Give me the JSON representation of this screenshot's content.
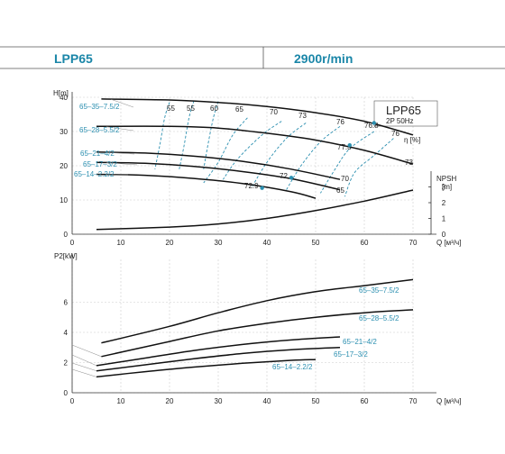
{
  "header": {
    "model": "LPP65",
    "speed": "2900r/min"
  },
  "chart_data": [
    {
      "type": "line",
      "id": "head",
      "title": "LPP65",
      "subtitle": "2P  50Hz",
      "ylabel": "H[m]",
      "xlabel": "Q [м³/ч]",
      "xlim": [
        0,
        70
      ],
      "ylim": [
        0,
        40
      ],
      "xticks": [
        0,
        10,
        20,
        30,
        40,
        50,
        60,
        70
      ],
      "yticks": [
        0,
        10,
        20,
        30,
        40
      ],
      "grid": true,
      "eta_label": "η [%]",
      "series": [
        {
          "name": "65–35–7.5/2",
          "x": [
            6,
            20,
            30,
            40,
            50,
            60,
            70
          ],
          "y": [
            39.5,
            39.2,
            38.5,
            37.3,
            35.5,
            33,
            29
          ]
        },
        {
          "name": "65–28–5.5/2",
          "x": [
            5,
            20,
            30,
            40,
            50,
            60,
            70
          ],
          "y": [
            31.5,
            31.5,
            31,
            29.5,
            27.5,
            24.5,
            20.5
          ]
        },
        {
          "name": "65–21–4/2",
          "x": [
            5,
            15,
            25,
            35,
            45,
            55
          ],
          "y": [
            24,
            23.7,
            22.8,
            21.3,
            19,
            16
          ]
        },
        {
          "name": "65–17–3/2",
          "x": [
            5,
            15,
            25,
            35,
            45,
            55
          ],
          "y": [
            21,
            20.7,
            19.8,
            18.3,
            16.2,
            13
          ]
        },
        {
          "name": "65–14–2.2/2",
          "x": [
            5,
            15,
            25,
            35,
            45,
            50
          ],
          "y": [
            17.5,
            17.2,
            16.3,
            14.8,
            12.4,
            10.5
          ]
        }
      ],
      "efficiency_labels": [
        "55",
        "55",
        "60",
        "65",
        "70",
        "73",
        "76",
        "76.8",
        "76",
        "77.3",
        "73",
        "72",
        "70",
        "72.9",
        "65"
      ],
      "efficiency_points": [
        {
          "label": "76.8",
          "x": 62,
          "y": 32.5
        },
        {
          "label": "77.3",
          "x": 57,
          "y": 26
        },
        {
          "label": "72",
          "x": 45,
          "y": 16.5
        },
        {
          "label": "72.9",
          "x": 39,
          "y": 13.5
        }
      ]
    },
    {
      "type": "line",
      "id": "npsh",
      "ylabel": "NPSH [m]",
      "ylim": [
        0,
        4
      ],
      "yticks": [
        0,
        1,
        2,
        3
      ],
      "series": [
        {
          "name": "NPSH",
          "x": [
            5,
            20,
            30,
            40,
            50,
            60,
            70
          ],
          "y": [
            0.3,
            0.45,
            0.65,
            1.0,
            1.5,
            2.1,
            2.8
          ]
        }
      ]
    },
    {
      "type": "line",
      "id": "power",
      "ylabel": "P2[kW]",
      "xlabel": "Q [м³/ч]",
      "xlim": [
        0,
        70
      ],
      "ylim": [
        0,
        8
      ],
      "xticks": [
        0,
        10,
        20,
        30,
        40,
        50,
        60,
        70
      ],
      "yticks": [
        0,
        2,
        4,
        6
      ],
      "grid": true,
      "series": [
        {
          "name": "65–35–7.5/2",
          "x": [
            6,
            20,
            30,
            40,
            50,
            60,
            70
          ],
          "y": [
            3.3,
            4.4,
            5.3,
            6.1,
            6.7,
            7.1,
            7.5
          ]
        },
        {
          "name": "65–28–5.5/2",
          "x": [
            6,
            20,
            30,
            40,
            50,
            60,
            70
          ],
          "y": [
            2.4,
            3.4,
            4.1,
            4.6,
            5.0,
            5.3,
            5.5
          ]
        },
        {
          "name": "65–21–4/2",
          "x": [
            5,
            15,
            25,
            35,
            45,
            55
          ],
          "y": [
            1.8,
            2.3,
            2.8,
            3.2,
            3.5,
            3.7
          ]
        },
        {
          "name": "65–17–3/2",
          "x": [
            5,
            15,
            25,
            35,
            45,
            55
          ],
          "y": [
            1.45,
            1.85,
            2.25,
            2.6,
            2.85,
            3.0
          ]
        },
        {
          "name": "65–14–2.2/2",
          "x": [
            5,
            15,
            25,
            35,
            45,
            50
          ],
          "y": [
            1.05,
            1.4,
            1.7,
            1.95,
            2.15,
            2.2
          ]
        }
      ]
    }
  ]
}
